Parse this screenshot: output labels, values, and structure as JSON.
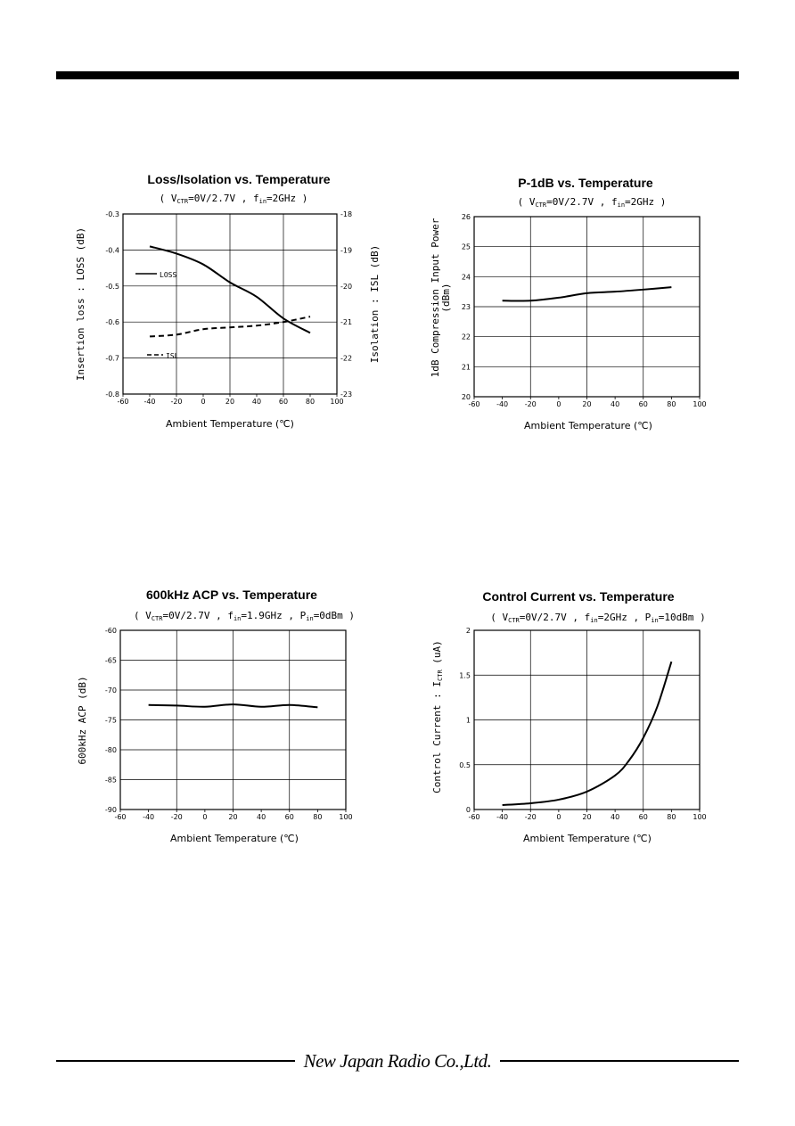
{
  "company": "New Japan Radio Co.,Ltd.",
  "chart_data": [
    {
      "id": "loss-isolation",
      "type": "line",
      "title": "Loss/Isolation vs. Temperature",
      "subtitle": {
        "p1": "( V",
        "s1": "CTR",
        "p2": "=0V/2.7V , f",
        "s2": "in",
        "p3": "=2GHz )"
      },
      "xlabel": "Ambient Temperature (℃)",
      "ylabel": "Insertion loss : LOSS (dB)",
      "y2label": "Isolation : ISL (dB)",
      "xlim": [
        -60,
        100
      ],
      "ylim": [
        -0.8,
        -0.3
      ],
      "y2lim": [
        -23,
        -18
      ],
      "xticks": [
        "-60",
        "-40",
        "-20",
        "0",
        "20",
        "40",
        "60",
        "80",
        "100"
      ],
      "yticks": [
        "-0.3",
        "-0.4",
        "-0.5",
        "-0.6",
        "-0.7",
        "-0.8"
      ],
      "y2ticks": [
        "-18",
        "-19",
        "-20",
        "-21",
        "-22",
        "-23"
      ],
      "series": [
        {
          "name": "LOSS",
          "axis": "left",
          "dash": "solid",
          "x": [
            -40,
            -20,
            0,
            20,
            40,
            60,
            80
          ],
          "y": [
            -0.39,
            -0.41,
            -0.44,
            -0.49,
            -0.53,
            -0.59,
            -0.63
          ]
        },
        {
          "name": "ISL",
          "axis": "right",
          "dash": "dashed",
          "x": [
            -40,
            -20,
            0,
            20,
            40,
            60,
            80
          ],
          "y": [
            -21.4,
            -21.35,
            -21.2,
            -21.15,
            -21.1,
            -21.0,
            -20.85
          ]
        }
      ]
    },
    {
      "id": "p1db",
      "type": "line",
      "title": "P-1dB vs. Temperature",
      "subtitle": {
        "p1": "( V",
        "s1": "CTR",
        "p2": "=0V/2.7V , f",
        "s2": "in",
        "p3": "=2GHz )"
      },
      "xlabel": "Ambient Temperature (℃)",
      "ylabel": "1dB Compression Input Power",
      "ylabel2": "(dBm)",
      "xlim": [
        -60,
        100
      ],
      "ylim": [
        20,
        26
      ],
      "xticks": [
        "-60",
        "-40",
        "-20",
        "0",
        "20",
        "40",
        "60",
        "80",
        "100"
      ],
      "yticks": [
        "26",
        "25",
        "24",
        "23",
        "22",
        "21",
        "20"
      ],
      "series": [
        {
          "x": [
            -40,
            -20,
            0,
            20,
            40,
            60,
            80
          ],
          "y": [
            23.2,
            23.2,
            23.3,
            23.45,
            23.5,
            23.57,
            23.65
          ]
        }
      ]
    },
    {
      "id": "acp",
      "type": "line",
      "title": "600kHz ACP vs. Temperature",
      "subtitle": {
        "p1": "( V",
        "s1": "CTR",
        "p2": "=0V/2.7V , f",
        "s2": "in",
        "p3": "=1.9GHz , P",
        "s3": "in",
        "p4": "=0dBm )"
      },
      "xlabel": "Ambient Temperature (℃)",
      "ylabel": "600kHz ACP (dB)",
      "xlim": [
        -60,
        100
      ],
      "ylim": [
        -90,
        -60
      ],
      "xticks": [
        "-60",
        "-40",
        "-20",
        "0",
        "20",
        "40",
        "60",
        "80",
        "100"
      ],
      "yticks": [
        "-60",
        "-65",
        "-70",
        "-75",
        "-80",
        "-85",
        "-90"
      ],
      "series": [
        {
          "x": [
            -40,
            -20,
            0,
            20,
            40,
            60,
            80
          ],
          "y": [
            -72.5,
            -72.6,
            -72.8,
            -72.4,
            -72.8,
            -72.5,
            -72.9
          ]
        }
      ]
    },
    {
      "id": "control-current",
      "type": "line",
      "title": "Control Current vs. Temperature",
      "subtitle": {
        "p1": "( V",
        "s1": "CTR",
        "p2": "=0V/2.7V , f",
        "s2": "in",
        "p3": "=2GHz , P",
        "s3": "in",
        "p4": "=10dBm )"
      },
      "xlabel": "Ambient Temperature (℃)",
      "ylabel": "Control Current : I",
      "ylabel_sub": "CTR",
      "ylabel_unit": " (uA)",
      "xlim": [
        -60,
        100
      ],
      "ylim": [
        0,
        2
      ],
      "xticks": [
        "-60",
        "-40",
        "-20",
        "0",
        "20",
        "40",
        "60",
        "80",
        "100"
      ],
      "yticks": [
        "2",
        "1.5",
        "1",
        "0.5",
        "0"
      ],
      "series": [
        {
          "x": [
            -40,
            -20,
            0,
            20,
            40,
            50,
            60,
            70,
            80
          ],
          "y": [
            0.05,
            0.07,
            0.11,
            0.2,
            0.38,
            0.55,
            0.8,
            1.15,
            1.65
          ]
        }
      ]
    }
  ]
}
